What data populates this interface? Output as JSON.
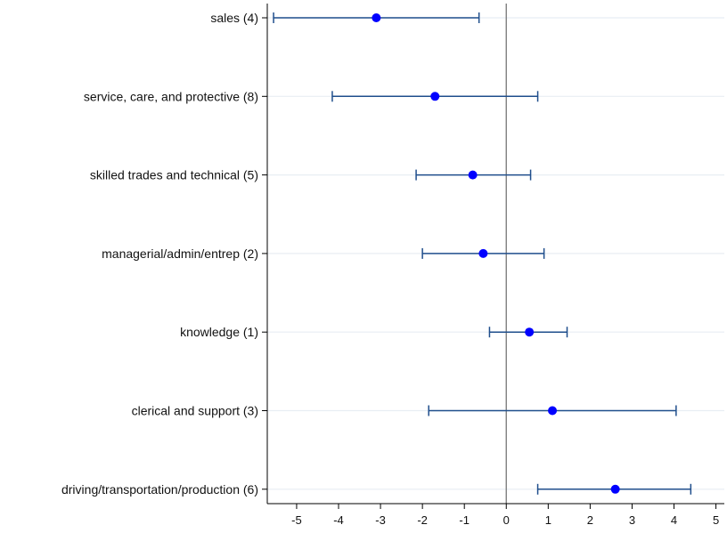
{
  "chart_data": {
    "type": "scatter",
    "subtype": "coefficient-plot-with-error-bars",
    "orientation": "horizontal",
    "categories": [
      "sales (4)",
      "service, care, and protective (8)",
      "skilled trades and technical (5)",
      "managerial/admin/entrep (2)",
      "knowledge (1)",
      "clerical and support (3)",
      "driving/transportation/production (6)"
    ],
    "series": [
      {
        "estimates": [
          -3.1,
          -1.7,
          -0.8,
          -0.55,
          0.55,
          1.1,
          2.6
        ],
        "ci_lower": [
          -5.55,
          -4.15,
          -2.15,
          -2.0,
          -0.4,
          -1.85,
          0.75
        ],
        "ci_upper": [
          -0.65,
          0.75,
          0.58,
          0.9,
          1.45,
          4.05,
          4.4
        ]
      }
    ],
    "x_ticks": [
      "-5",
      "-4",
      "-3",
      "-2",
      "-1",
      "0",
      "1",
      "2",
      "3",
      "4",
      "5"
    ],
    "xlim": [
      -5.7,
      5.2
    ],
    "reference_line_x": 0,
    "grid": "horizontal",
    "legend": "none",
    "colors": {
      "point": "#0000ff",
      "error_bar": "#1f4e8c",
      "reference_line": "#7f7f7f",
      "grid": "#e8eef3",
      "axis": "#000000"
    }
  }
}
